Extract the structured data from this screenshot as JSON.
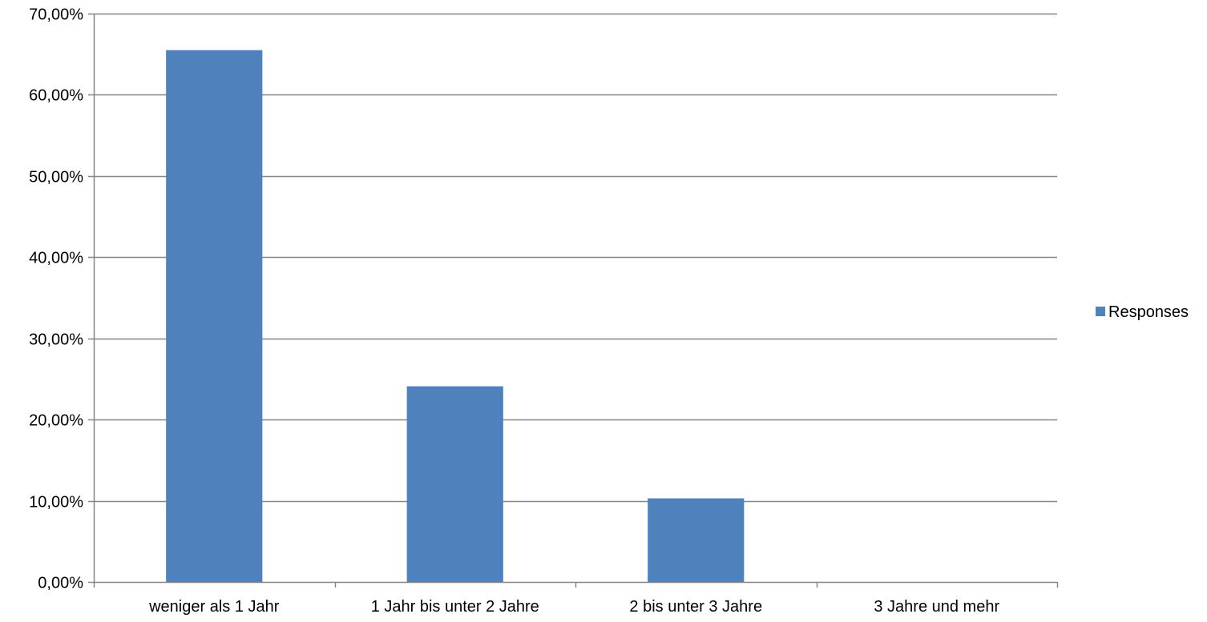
{
  "chart_data": {
    "type": "bar",
    "categories": [
      "weniger als 1 Jahr",
      "1 Jahr bis unter 2 Jahre",
      "2 bis unter 3 Jahre",
      "3 Jahre und mehr"
    ],
    "series": [
      {
        "name": "Responses",
        "values": [
          65.5,
          24.1,
          10.3,
          0
        ]
      }
    ],
    "ylim": [
      0,
      70
    ],
    "yticks": [
      0,
      10,
      20,
      30,
      40,
      50,
      60,
      70
    ],
    "ytick_labels": [
      "0,00%",
      "10,00%",
      "20,00%",
      "30,00%",
      "40,00%",
      "50,00%",
      "60,00%",
      "70,00%"
    ],
    "grid": true,
    "legend_position": "right",
    "colors": {
      "bar": "#4F81BD",
      "grid": "#868686",
      "axis": "#868686"
    }
  }
}
